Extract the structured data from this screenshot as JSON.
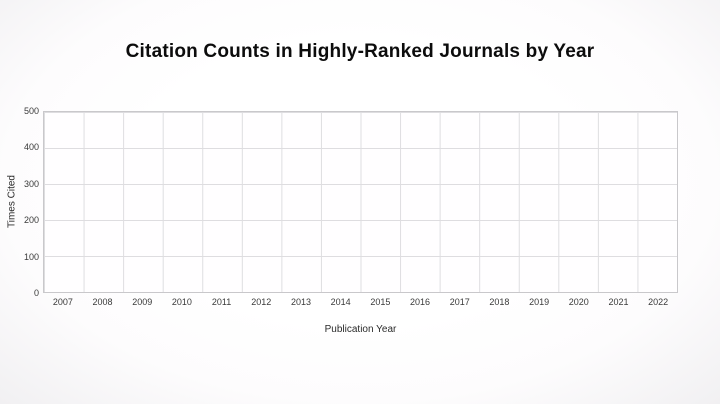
{
  "chart_data": {
    "type": "scatter",
    "title": "Citation Counts in Highly-Ranked Journals by Year",
    "xlabel": "Publication Year",
    "ylabel": "Times Cited",
    "categories": [
      "2007",
      "2008",
      "2009",
      "2010",
      "2011",
      "2012",
      "2013",
      "2014",
      "2015",
      "2016",
      "2017",
      "2018",
      "2019",
      "2020",
      "2021",
      "2022"
    ],
    "series": [],
    "ylim": [
      0,
      500
    ],
    "yticks": [
      0,
      100,
      200,
      300,
      400,
      500
    ],
    "grid": "on",
    "legend": "none",
    "plot_background": "#ffffff",
    "gridline_color": "#dedde0",
    "border_color": "#c9c8cb"
  }
}
